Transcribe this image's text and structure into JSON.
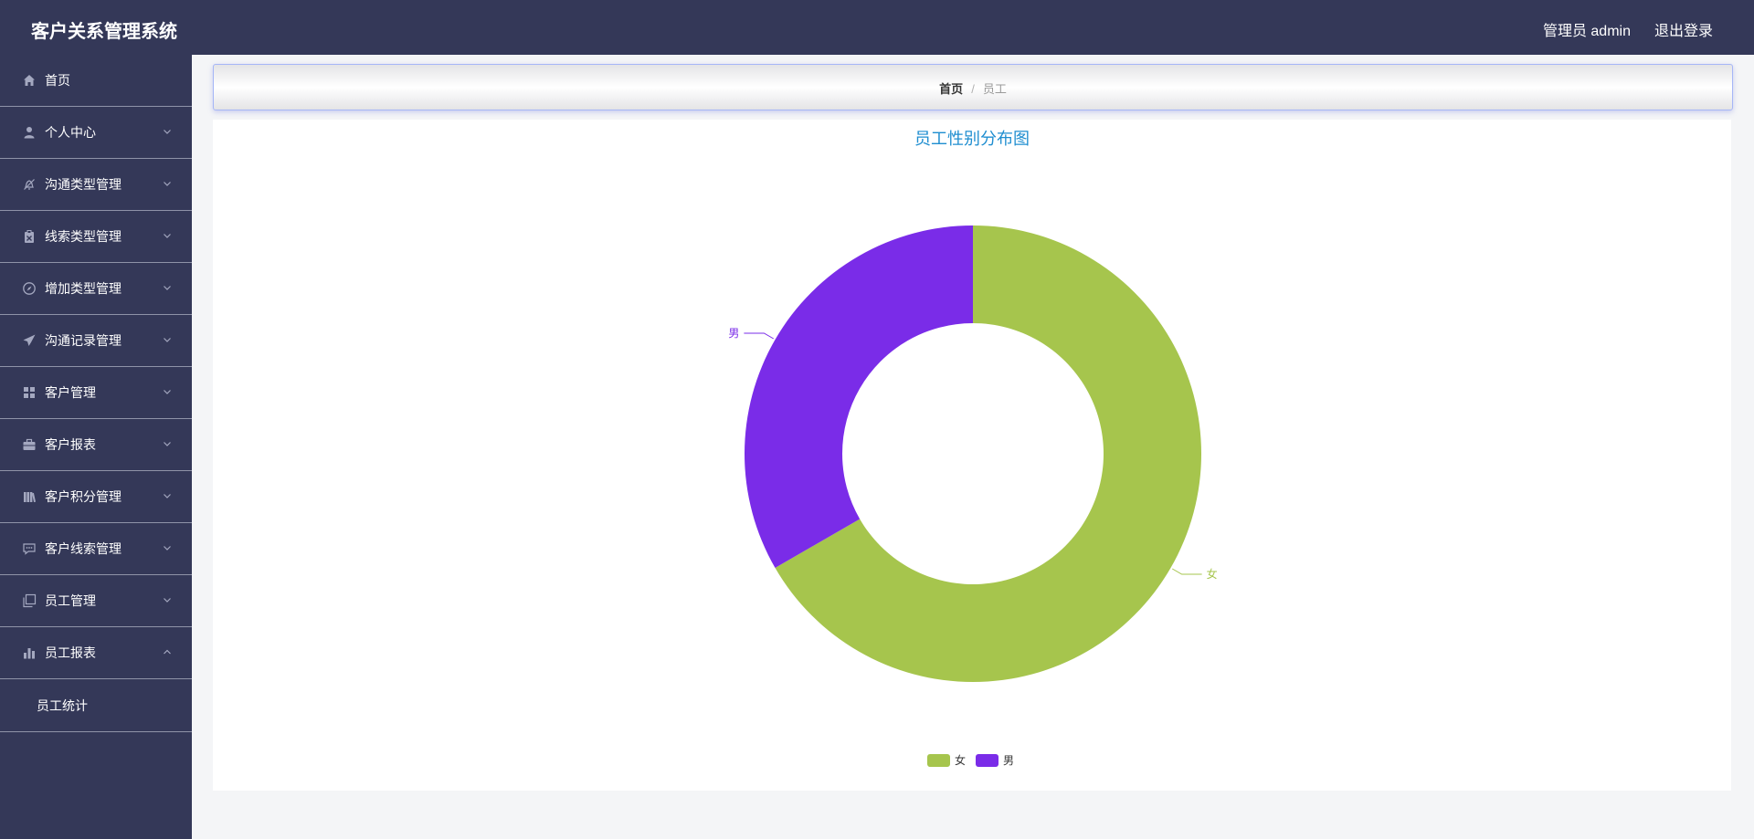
{
  "header": {
    "title": "客户关系管理系统",
    "user": "管理员 admin",
    "logout": "退出登录"
  },
  "sidebar": {
    "items": [
      {
        "label": "首页",
        "icon": "home-icon",
        "expandable": false
      },
      {
        "label": "个人中心",
        "icon": "user-icon",
        "expandable": true
      },
      {
        "label": "沟通类型管理",
        "icon": "bell-off-icon",
        "expandable": true
      },
      {
        "label": "线索类型管理",
        "icon": "clipboard-icon",
        "expandable": true
      },
      {
        "label": "增加类型管理",
        "icon": "compass-icon",
        "expandable": true
      },
      {
        "label": "沟通记录管理",
        "icon": "send-icon",
        "expandable": true
      },
      {
        "label": "客户管理",
        "icon": "grid-icon",
        "expandable": true
      },
      {
        "label": "客户报表",
        "icon": "briefcase-icon",
        "expandable": true
      },
      {
        "label": "客户积分管理",
        "icon": "library-icon",
        "expandable": true
      },
      {
        "label": "客户线索管理",
        "icon": "chat-icon",
        "expandable": true
      },
      {
        "label": "员工管理",
        "icon": "copy-icon",
        "expandable": true
      },
      {
        "label": "员工报表",
        "icon": "bar-chart-icon",
        "expandable": true,
        "expanded": true
      }
    ],
    "subitems": [
      {
        "label": "员工统计"
      }
    ]
  },
  "breadcrumb": {
    "home": "首页",
    "separator": "/",
    "current": "员工"
  },
  "chart_data": {
    "type": "pie",
    "variant": "donut",
    "title": "员工性别分布图",
    "categories": [
      "女",
      "男"
    ],
    "values": [
      2,
      1
    ],
    "colors": [
      "#a6c54d",
      "#7a2ce8"
    ],
    "legend_position": "bottom-center",
    "title_color": "#1f8ed0"
  }
}
